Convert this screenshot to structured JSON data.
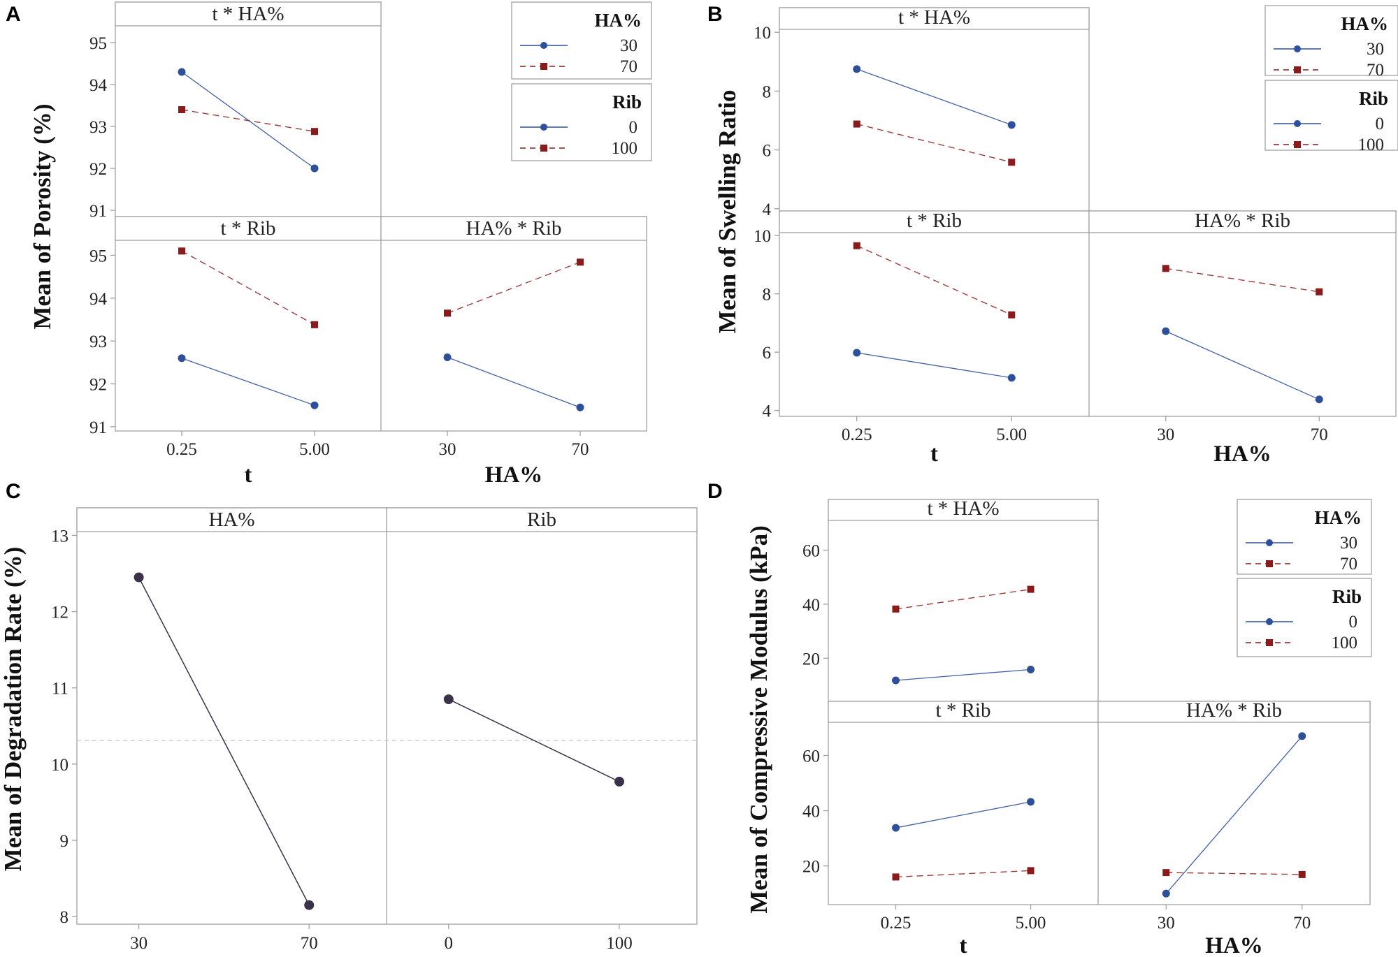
{
  "colors": {
    "series_30": "#2e4f9a",
    "series_70": "#8b1a1a",
    "main_effect": "#3b3149",
    "grid": "#a0a0a0"
  },
  "chart_data": [
    {
      "panel": "A",
      "type": "line",
      "ylabel": "Mean of Porosity (%)",
      "xlabels": [
        "t",
        "HA%"
      ],
      "legends": [
        {
          "title": "HA%",
          "title_bold": true,
          "entries": [
            {
              "label": "30",
              "style": "solid"
            },
            {
              "label": "70",
              "style": "dashed"
            }
          ]
        },
        {
          "title": "Rib",
          "title_bold": false,
          "entries": [
            {
              "label": "0",
              "style": "solid"
            },
            {
              "label": "100",
              "style": "dashed"
            }
          ]
        }
      ],
      "rows": [
        {
          "ylim": [
            90.8,
            95.4
          ],
          "yticks": [
            "91",
            "92",
            "93",
            "94",
            "95"
          ]
        },
        {
          "ylim": [
            90.9,
            95.35
          ],
          "yticks": [
            "91",
            "92",
            "93",
            "94",
            "95"
          ]
        }
      ],
      "subplots": [
        {
          "title": "t * HA%",
          "row": 0,
          "col": 0,
          "categories": [
            "0.25",
            "5.00"
          ],
          "series": [
            {
              "name": "30",
              "style": "solid",
              "values": [
                94.3,
                92.0
              ]
            },
            {
              "name": "70",
              "style": "dashed",
              "values": [
                93.4,
                92.88
              ]
            }
          ]
        },
        {
          "title": "t * Rib",
          "row": 1,
          "col": 0,
          "categories": [
            "0.25",
            "5.00"
          ],
          "series": [
            {
              "name": "0",
              "style": "solid",
              "values": [
                92.6,
                91.5
              ]
            },
            {
              "name": "100",
              "style": "dashed",
              "values": [
                95.1,
                93.38
              ]
            }
          ]
        },
        {
          "title": "HA% * Rib",
          "row": 1,
          "col": 1,
          "categories": [
            "30",
            "70"
          ],
          "series": [
            {
              "name": "0",
              "style": "solid",
              "values": [
                92.62,
                91.45
              ]
            },
            {
              "name": "100",
              "style": "dashed",
              "values": [
                93.65,
                94.84
              ]
            }
          ]
        }
      ]
    },
    {
      "panel": "B",
      "type": "line",
      "ylabel": "Mean of Swelling Ratio",
      "xlabels": [
        "t",
        "HA%"
      ],
      "legends": [
        {
          "title": "HA%",
          "title_bold": true,
          "entries": [
            {
              "label": "30",
              "style": "solid"
            },
            {
              "label": "70",
              "style": "dashed"
            }
          ]
        },
        {
          "title": "Rib",
          "title_bold": true,
          "entries": [
            {
              "label": "0",
              "style": "solid"
            },
            {
              "label": "100",
              "style": "dashed"
            }
          ]
        }
      ],
      "rows": [
        {
          "ylim": [
            3.9,
            10.1
          ],
          "yticks": [
            "4",
            "6",
            "8",
            "10"
          ]
        },
        {
          "ylim": [
            3.8,
            10.1
          ],
          "yticks": [
            "4",
            "6",
            "8",
            "10"
          ]
        }
      ],
      "subplots": [
        {
          "title": "t * HA%",
          "row": 0,
          "col": 0,
          "categories": [
            "0.25",
            "5.00"
          ],
          "series": [
            {
              "name": "30",
              "style": "solid",
              "values": [
                8.75,
                6.85
              ]
            },
            {
              "name": "70",
              "style": "dashed",
              "values": [
                6.88,
                5.58
              ]
            }
          ]
        },
        {
          "title": "t * Rib",
          "row": 1,
          "col": 0,
          "categories": [
            "0.25",
            "5.00"
          ],
          "series": [
            {
              "name": "0",
              "style": "solid",
              "values": [
                5.98,
                5.12
              ]
            },
            {
              "name": "100",
              "style": "dashed",
              "values": [
                9.65,
                7.28
              ]
            }
          ]
        },
        {
          "title": "HA% * Rib",
          "row": 1,
          "col": 1,
          "categories": [
            "30",
            "70"
          ],
          "series": [
            {
              "name": "0",
              "style": "solid",
              "values": [
                6.72,
                4.38
              ]
            },
            {
              "name": "100",
              "style": "dashed",
              "values": [
                8.87,
                8.07
              ]
            }
          ]
        }
      ]
    },
    {
      "panel": "C",
      "type": "line",
      "ylabel": "Mean of Degradation Rate (%)",
      "ylim": [
        7.9,
        13.05
      ],
      "yticks": [
        "8",
        "9",
        "10",
        "11",
        "12",
        "13"
      ],
      "reference_line": 10.31,
      "subplots": [
        {
          "title": "HA%",
          "categories": [
            "30",
            "70"
          ],
          "values": [
            12.45,
            8.15
          ]
        },
        {
          "title": "Rib",
          "categories": [
            "0",
            "100"
          ],
          "values": [
            10.85,
            9.77
          ]
        }
      ]
    },
    {
      "panel": "D",
      "type": "line",
      "ylabel": "Mean of Compressive Modulus (kPa)",
      "xlabels": [
        "t",
        "HA%"
      ],
      "legends": [
        {
          "title": "HA%",
          "title_bold": true,
          "entries": [
            {
              "label": "30",
              "style": "solid"
            },
            {
              "label": "70",
              "style": "dashed"
            }
          ]
        },
        {
          "title": "Rib",
          "title_bold": true,
          "entries": [
            {
              "label": "0",
              "style": "solid"
            },
            {
              "label": "100",
              "style": "dashed"
            }
          ]
        }
      ],
      "rows": [
        {
          "ylim": [
            3,
            71
          ],
          "yticks": [
            "20",
            "40",
            "60"
          ]
        },
        {
          "ylim": [
            6,
            72
          ],
          "yticks": [
            "20",
            "40",
            "60"
          ]
        }
      ],
      "subplots": [
        {
          "title": "t * HA%",
          "row": 0,
          "col": 0,
          "categories": [
            "0.25",
            "5.00"
          ],
          "series": [
            {
              "name": "30",
              "style": "solid",
              "values": [
                11.8,
                15.8
              ]
            },
            {
              "name": "70",
              "style": "dashed",
              "values": [
                38.2,
                45.5
              ]
            }
          ]
        },
        {
          "title": "t * Rib",
          "row": 1,
          "col": 0,
          "categories": [
            "0.25",
            "5.00"
          ],
          "series": [
            {
              "name": "0",
              "style": "solid",
              "values": [
                33.8,
                43.2
              ]
            },
            {
              "name": "100",
              "style": "dashed",
              "values": [
                16.0,
                18.3
              ]
            }
          ]
        },
        {
          "title": "HA% * Rib",
          "row": 1,
          "col": 1,
          "categories": [
            "30",
            "70"
          ],
          "series": [
            {
              "name": "0",
              "style": "solid",
              "values": [
                10.0,
                67.0
              ]
            },
            {
              "name": "100",
              "style": "dashed",
              "values": [
                17.6,
                16.9
              ]
            }
          ]
        }
      ]
    }
  ]
}
